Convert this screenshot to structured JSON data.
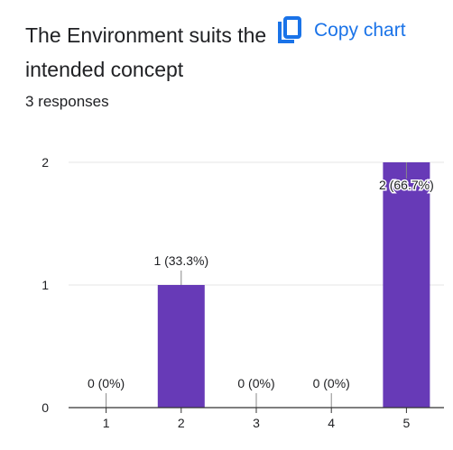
{
  "header": {
    "title": "The Environment suits the intended concept",
    "copy_label": "Copy chart",
    "copy_icon": "copy-icon",
    "responses": "3 responses"
  },
  "colors": {
    "bar": "#673ab7",
    "accent": "#1a73e8",
    "grid": "#e6e6e6",
    "axis": "#333333"
  },
  "chart_data": {
    "type": "bar",
    "title": "The Environment suits the intended concept",
    "xlabel": "",
    "ylabel": "",
    "categories": [
      "1",
      "2",
      "3",
      "4",
      "5"
    ],
    "values": [
      0,
      1,
      0,
      0,
      2
    ],
    "data_labels": [
      "0 (0%)",
      "1 (33.3%)",
      "0 (0%)",
      "0 (0%)",
      "2 (66.7%)"
    ],
    "yticks": [
      "0",
      "1",
      "2"
    ],
    "ylim": [
      0,
      2
    ],
    "grid": true
  }
}
